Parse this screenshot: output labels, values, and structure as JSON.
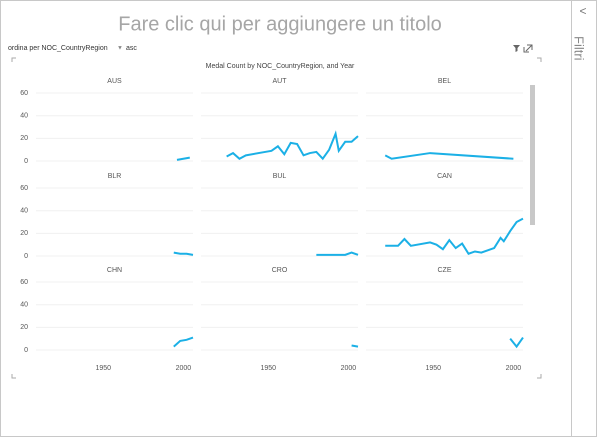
{
  "page_title": "Fare clic qui per aggiungere un titolo",
  "sort": {
    "label": "ordina per NOC_CountryRegion",
    "order": "asc"
  },
  "filters_label": "Filtri",
  "chart_data": {
    "type": "line",
    "title": "Medal Count by NOC_CountryRegion, and Year",
    "color": "#1bb0e6",
    "xlim": [
      1908,
      2006
    ],
    "xticks": [
      1950,
      2000
    ],
    "ylim": [
      0,
      64
    ],
    "yticks": [
      0,
      20,
      40,
      60
    ],
    "grid": true,
    "panels": [
      {
        "name": "AUS",
        "x": [
          1996,
          2000,
          2004
        ],
        "values": [
          1,
          2,
          3
        ]
      },
      {
        "name": "AUT",
        "x": [
          1924,
          1928,
          1932,
          1936,
          1948,
          1952,
          1956,
          1960,
          1964,
          1968,
          1972,
          1976,
          1980,
          1984,
          1988,
          1992,
          1994,
          1998,
          2002,
          2006
        ],
        "values": [
          4,
          7,
          2,
          5,
          8,
          9,
          13,
          6,
          16,
          15,
          5,
          7,
          8,
          2,
          10,
          24,
          9,
          17,
          17,
          22
        ]
      },
      {
        "name": "BEL",
        "x": [
          1920,
          1924,
          1948,
          2000
        ],
        "values": [
          5,
          2,
          7,
          2
        ]
      },
      {
        "name": "BLR",
        "x": [
          1994,
          1998,
          2002,
          2006
        ],
        "values": [
          3,
          2,
          2,
          1
        ]
      },
      {
        "name": "BUL",
        "x": [
          1980,
          1984,
          1988,
          1994,
          1998,
          2002,
          2006
        ],
        "values": [
          1,
          1,
          1,
          1,
          1,
          3,
          1
        ]
      },
      {
        "name": "CAN",
        "x": [
          1920,
          1924,
          1928,
          1932,
          1936,
          1948,
          1952,
          1956,
          1960,
          1964,
          1968,
          1972,
          1976,
          1980,
          1984,
          1988,
          1992,
          1994,
          1998,
          2002,
          2006
        ],
        "values": [
          9,
          9,
          9,
          15,
          9,
          12,
          10,
          6,
          14,
          7,
          11,
          2,
          4,
          3,
          5,
          7,
          16,
          13,
          22,
          30,
          33
        ]
      },
      {
        "name": "CHN",
        "x": [
          1994,
          1998,
          2002,
          2006
        ],
        "values": [
          3,
          8,
          9,
          11
        ]
      },
      {
        "name": "CRO",
        "x": [
          2002,
          2006
        ],
        "values": [
          4,
          3
        ]
      },
      {
        "name": "CZE",
        "x": [
          1998,
          2002,
          2006
        ],
        "values": [
          10,
          3,
          11
        ]
      }
    ]
  }
}
